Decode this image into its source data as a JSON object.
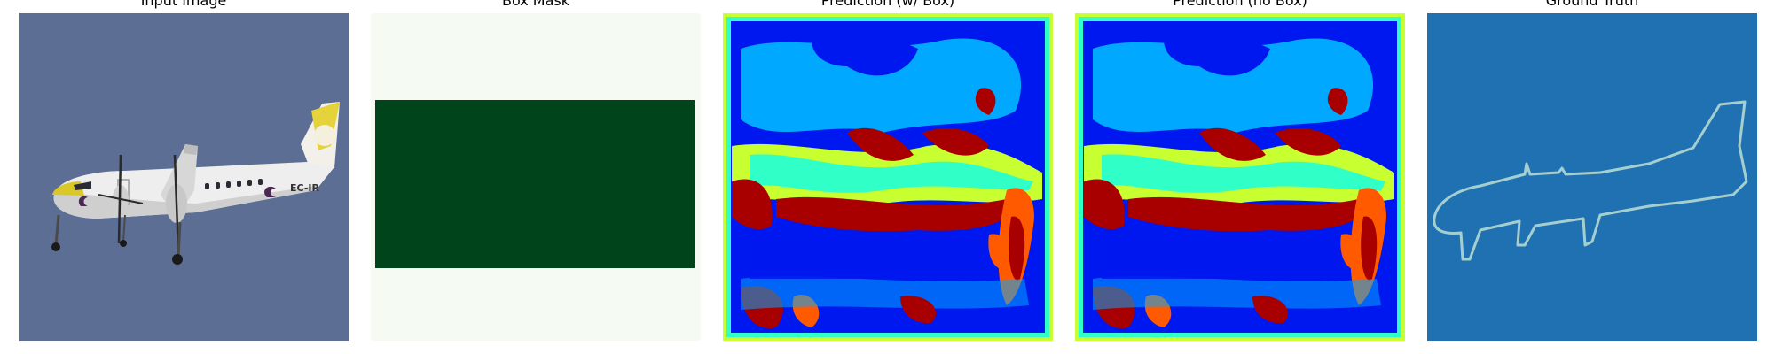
{
  "panels": [
    {
      "title": "Input Image"
    },
    {
      "title": "Box Mask"
    },
    {
      "title": "Prediction (w/ Box)"
    },
    {
      "title": "Prediction (no Box)"
    },
    {
      "title": "Ground Truth"
    }
  ],
  "aircraft": {
    "registration": "EC-IR"
  },
  "colors": {
    "sky": "#5c6e94",
    "box_mask_background": "#f5fbf3",
    "box_mask_fill": "#00441b",
    "ground_truth_background": "#2071b1",
    "ground_truth_outline": "#a5cfce",
    "prediction_dark_blue": "#0018f0",
    "prediction_light_blue": "#00a8ff",
    "prediction_cyan": "#30ffc8",
    "prediction_yellow_green": "#c8ff30",
    "prediction_orange": "#ff5a00",
    "prediction_dark_red": "#a80000"
  }
}
